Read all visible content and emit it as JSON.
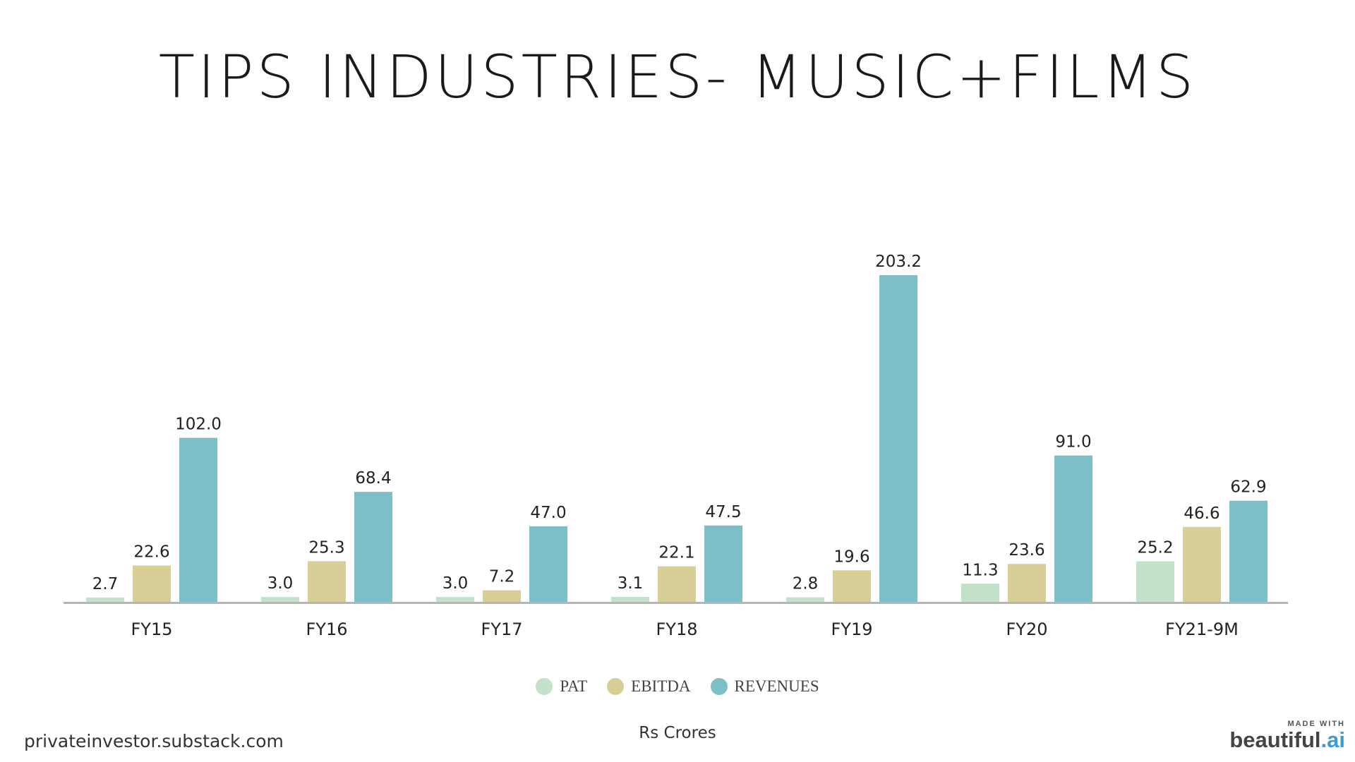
{
  "title": "TIPS INDUSTRIES- MUSIC+FILMS",
  "footer_left": "privateinvestor.substack.com",
  "units_label": "Rs Crores",
  "brand": {
    "small": "MADE WITH",
    "name": "beautiful",
    "suffix": ".ai"
  },
  "colors": {
    "PAT": "#c2e2c9",
    "EBITDA": "#d8cf96",
    "REVENUES": "#7dbfc6",
    "axis": "#b5b5b5"
  },
  "chart_data": {
    "type": "bar",
    "categories": [
      "FY15",
      "FY16",
      "FY17",
      "FY18",
      "FY19",
      "FY20",
      "FY21-9M"
    ],
    "series": [
      {
        "name": "PAT",
        "values": [
          2.7,
          3.0,
          3.0,
          3.1,
          2.8,
          11.3,
          25.2
        ],
        "labels": [
          "2.7",
          "3.0",
          "3.0",
          "3.1",
          "2.8",
          "11.3",
          "25.2"
        ]
      },
      {
        "name": "EBITDA",
        "values": [
          22.6,
          25.3,
          7.2,
          22.1,
          19.6,
          23.6,
          46.6
        ],
        "labels": [
          "22.6",
          "25.3",
          "7.2",
          "22.1",
          "19.6",
          "23.6",
          "46.6"
        ]
      },
      {
        "name": "REVENUES",
        "values": [
          102.0,
          68.4,
          47.0,
          47.5,
          203.2,
          91.0,
          62.9
        ],
        "labels": [
          "102.0",
          "68.4",
          "47.0",
          "47.5",
          "203.2",
          "91.0",
          "62.9"
        ]
      }
    ],
    "ylim": [
      0,
      203.2
    ],
    "legend_position": "bottom",
    "grid": false
  }
}
